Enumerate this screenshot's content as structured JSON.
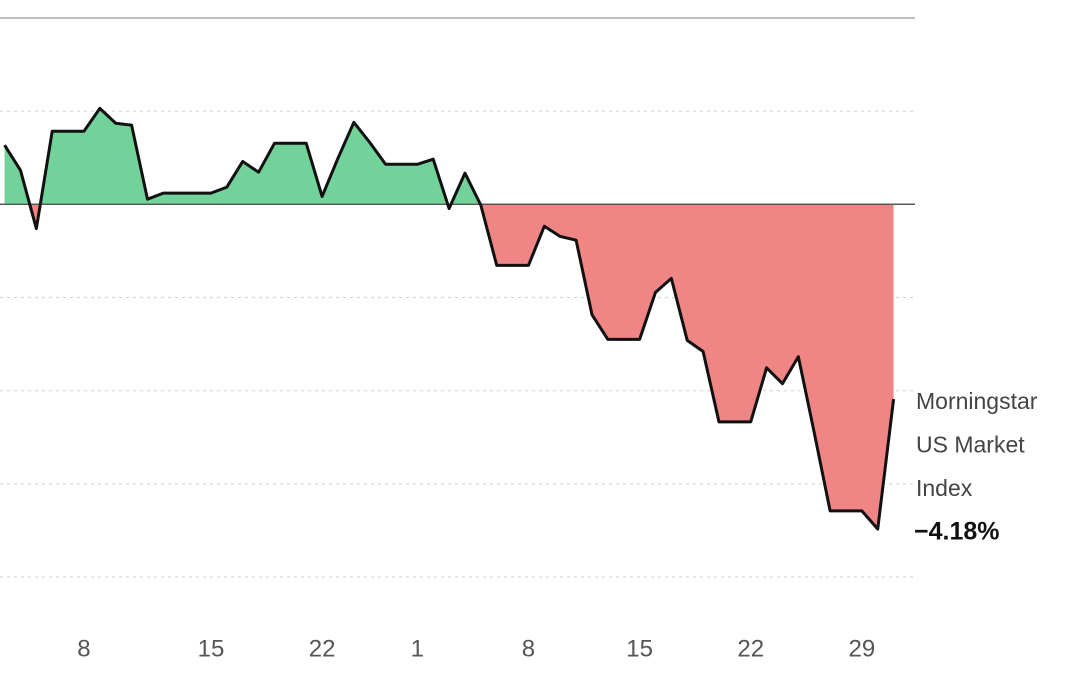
{
  "chart_data": {
    "type": "area",
    "categories": [
      null,
      null,
      null,
      null,
      null,
      "8",
      null,
      null,
      null,
      null,
      null,
      null,
      null,
      "15",
      null,
      null,
      null,
      null,
      null,
      null,
      "22",
      null,
      null,
      null,
      null,
      null,
      "1",
      null,
      null,
      null,
      null,
      null,
      null,
      "8",
      null,
      null,
      null,
      null,
      null,
      null,
      "15",
      null,
      null,
      null,
      null,
      null,
      null,
      "22",
      null,
      null,
      null,
      null,
      null,
      null,
      "29",
      null,
      null
    ],
    "values": [
      1.27,
      0.73,
      -0.52,
      1.57,
      1.57,
      1.57,
      2.06,
      1.74,
      1.7,
      0.11,
      0.24,
      0.24,
      0.24,
      0.24,
      0.37,
      0.92,
      0.69,
      1.31,
      1.31,
      1.31,
      0.17,
      0.99,
      1.76,
      1.33,
      0.86,
      0.86,
      0.86,
      0.97,
      -0.09,
      0.67,
      -0.02,
      -1.31,
      -1.31,
      -1.31,
      -0.47,
      -0.69,
      -0.77,
      -2.37,
      -2.9,
      -2.9,
      -2.9,
      -1.89,
      -1.59,
      -2.92,
      -3.16,
      -4.67,
      -4.67,
      -4.67,
      -3.51,
      -3.85,
      -3.27,
      -4.9,
      -6.58,
      -6.58,
      -6.58,
      -6.97,
      -4.18
    ],
    "value_labels": [
      null,
      null,
      null,
      null,
      null,
      null,
      null,
      null,
      null,
      null,
      null,
      null,
      null,
      null,
      null,
      null,
      null,
      null,
      null,
      null,
      null,
      null,
      null,
      null,
      null,
      null,
      null,
      null,
      null,
      null,
      null,
      null,
      null,
      null,
      null,
      null,
      null,
      null,
      null,
      null,
      null,
      null,
      null,
      null,
      null,
      null,
      null,
      null,
      null,
      null,
      null,
      null,
      null,
      null,
      null,
      null,
      "−4.18%"
    ],
    "series_name_lines": [
      "Morningstar",
      "US Market",
      "Index"
    ],
    "positive_color": "#72d39a",
    "negative_color": "#ef8585",
    "line_color": "#111111",
    "ylim": [
      -8,
      4
    ],
    "yticks": [
      4,
      2,
      0,
      -2,
      -4,
      -6,
      -8
    ],
    "grid": true
  }
}
